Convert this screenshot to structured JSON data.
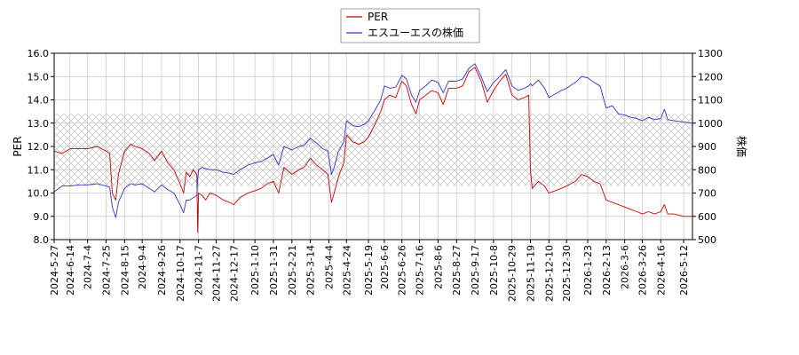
{
  "chart_data": {
    "type": "line",
    "legend": {
      "placement": "top-center",
      "entries": [
        "PER",
        "エスユーエスの株価"
      ]
    },
    "ylabel_left": "PER",
    "ylabel_right": "株価",
    "ylim_left": [
      8.0,
      16.0
    ],
    "ylim_right": [
      500,
      1300
    ],
    "yticks_left": [
      "8.0",
      "9.0",
      "10.0",
      "11.0",
      "12.0",
      "13.0",
      "14.0",
      "15.0",
      "16.0"
    ],
    "yticks_right": [
      "500",
      "600",
      "700",
      "800",
      "900",
      "1000",
      "1100",
      "1200",
      "1300"
    ],
    "xlim": [
      "2024-05-27",
      "2026-05-22"
    ],
    "xticks": [
      "2024-5-27",
      "2024-6-14",
      "2024-7-4",
      "2024-7-25",
      "2024-8-15",
      "2024-9-4",
      "2024-9-26",
      "2024-10-17",
      "2024-11-7",
      "2024-11-27",
      "2024-12-17",
      "2025-1-10",
      "2025-1-31",
      "2025-2-21",
      "2025-3-14",
      "2025-4-4",
      "2025-4-24",
      "2025-5-19",
      "2025-6-6",
      "2025-6-26",
      "2025-7-16",
      "2025-8-6",
      "2025-8-27",
      "2025-9-17",
      "2025-10-8",
      "2025-10-29",
      "2025-11-19",
      "2025-12-10",
      "2025-12-30",
      "2026-1-23",
      "2026-2-13",
      "2026-3-6",
      "2026-3-26",
      "2026-4-16",
      "2026-5-12"
    ],
    "grid": true,
    "shaded_band_right_axis": [
      730,
      1040
    ],
    "colors": {
      "per": "#cc0000",
      "price": "#3333cc",
      "grid": "#c8c8c8",
      "hatch": "#b8b8b8"
    },
    "series": [
      {
        "name": "PER",
        "axis": "left",
        "points": [
          [
            "2024-05-27",
            11.8
          ],
          [
            "2024-06-05",
            11.7
          ],
          [
            "2024-06-14",
            11.9
          ],
          [
            "2024-06-24",
            11.9
          ],
          [
            "2024-07-04",
            11.9
          ],
          [
            "2024-07-15",
            12.0
          ],
          [
            "2024-07-25",
            11.8
          ],
          [
            "2024-07-29",
            11.7
          ],
          [
            "2024-08-01",
            10.0
          ],
          [
            "2024-08-05",
            9.7
          ],
          [
            "2024-08-08",
            10.8
          ],
          [
            "2024-08-15",
            11.8
          ],
          [
            "2024-08-22",
            12.1
          ],
          [
            "2024-08-27",
            12.0
          ],
          [
            "2024-09-04",
            11.9
          ],
          [
            "2024-09-12",
            11.7
          ],
          [
            "2024-09-18",
            11.4
          ],
          [
            "2024-09-26",
            11.8
          ],
          [
            "2024-10-03",
            11.3
          ],
          [
            "2024-10-10",
            11.0
          ],
          [
            "2024-10-17",
            10.4
          ],
          [
            "2024-10-21",
            10.0
          ],
          [
            "2024-10-24",
            10.9
          ],
          [
            "2024-10-28",
            10.7
          ],
          [
            "2024-11-01",
            11.0
          ],
          [
            "2024-11-05",
            10.8
          ],
          [
            "2024-11-06",
            8.3
          ],
          [
            "2024-11-07",
            10.0
          ],
          [
            "2024-11-11",
            9.9
          ],
          [
            "2024-11-15",
            9.7
          ],
          [
            "2024-11-20",
            10.0
          ],
          [
            "2024-11-27",
            9.9
          ],
          [
            "2024-12-05",
            9.7
          ],
          [
            "2024-12-12",
            9.6
          ],
          [
            "2024-12-17",
            9.5
          ],
          [
            "2024-12-24",
            9.8
          ],
          [
            "2025-01-02",
            10.0
          ],
          [
            "2025-01-10",
            10.1
          ],
          [
            "2025-01-17",
            10.2
          ],
          [
            "2025-01-24",
            10.4
          ],
          [
            "2025-01-31",
            10.5
          ],
          [
            "2025-02-06",
            10.0
          ],
          [
            "2025-02-12",
            11.1
          ],
          [
            "2025-02-21",
            10.8
          ],
          [
            "2025-03-01",
            11.0
          ],
          [
            "2025-03-07",
            11.1
          ],
          [
            "2025-03-14",
            11.5
          ],
          [
            "2025-03-21",
            11.2
          ],
          [
            "2025-03-28",
            11.0
          ],
          [
            "2025-04-03",
            10.8
          ],
          [
            "2025-04-07",
            9.6
          ],
          [
            "2025-04-10",
            10.0
          ],
          [
            "2025-04-15",
            10.7
          ],
          [
            "2025-04-21",
            11.3
          ],
          [
            "2025-04-24",
            12.5
          ],
          [
            "2025-05-01",
            12.2
          ],
          [
            "2025-05-08",
            12.1
          ],
          [
            "2025-05-14",
            12.2
          ],
          [
            "2025-05-19",
            12.4
          ],
          [
            "2025-05-27",
            13.0
          ],
          [
            "2025-06-02",
            13.5
          ],
          [
            "2025-06-06",
            14.0
          ],
          [
            "2025-06-12",
            14.2
          ],
          [
            "2025-06-19",
            14.1
          ],
          [
            "2025-06-26",
            14.8
          ],
          [
            "2025-07-01",
            14.6
          ],
          [
            "2025-07-07",
            13.8
          ],
          [
            "2025-07-12",
            13.4
          ],
          [
            "2025-07-16",
            14.0
          ],
          [
            "2025-07-23",
            14.2
          ],
          [
            "2025-07-30",
            14.4
          ],
          [
            "2025-08-06",
            14.3
          ],
          [
            "2025-08-12",
            13.8
          ],
          [
            "2025-08-18",
            14.5
          ],
          [
            "2025-08-27",
            14.5
          ],
          [
            "2025-09-03",
            14.6
          ],
          [
            "2025-09-10",
            15.2
          ],
          [
            "2025-09-17",
            15.4
          ],
          [
            "2025-09-24",
            14.8
          ],
          [
            "2025-10-01",
            13.9
          ],
          [
            "2025-10-08",
            14.4
          ],
          [
            "2025-10-15",
            14.8
          ],
          [
            "2025-10-22",
            15.1
          ],
          [
            "2025-10-29",
            14.2
          ],
          [
            "2025-11-05",
            14.0
          ],
          [
            "2025-11-12",
            14.1
          ],
          [
            "2025-11-17",
            14.2
          ],
          [
            "2025-11-19",
            11.0
          ],
          [
            "2025-11-21",
            10.2
          ],
          [
            "2025-11-28",
            10.5
          ],
          [
            "2025-12-05",
            10.3
          ],
          [
            "2025-12-10",
            10.0
          ],
          [
            "2025-12-17",
            10.1
          ],
          [
            "2025-12-24",
            10.2
          ],
          [
            "2025-12-30",
            10.3
          ],
          [
            "2026-01-09",
            10.5
          ],
          [
            "2026-01-16",
            10.8
          ],
          [
            "2026-01-23",
            10.7
          ],
          [
            "2026-01-30",
            10.5
          ],
          [
            "2026-02-06",
            10.4
          ],
          [
            "2026-02-13",
            9.7
          ],
          [
            "2026-02-20",
            9.6
          ],
          [
            "2026-02-27",
            9.5
          ],
          [
            "2026-03-06",
            9.4
          ],
          [
            "2026-03-13",
            9.3
          ],
          [
            "2026-03-20",
            9.2
          ],
          [
            "2026-03-26",
            9.1
          ],
          [
            "2026-04-02",
            9.2
          ],
          [
            "2026-04-09",
            9.1
          ],
          [
            "2026-04-16",
            9.2
          ],
          [
            "2026-04-20",
            9.5
          ],
          [
            "2026-04-24",
            9.1
          ],
          [
            "2026-05-01",
            9.1
          ],
          [
            "2026-05-12",
            9.0
          ],
          [
            "2026-05-22",
            9.0
          ]
        ]
      },
      {
        "name": "エスユーエスの株価",
        "axis": "right",
        "points": [
          [
            "2024-05-27",
            705
          ],
          [
            "2024-06-05",
            730
          ],
          [
            "2024-06-14",
            730
          ],
          [
            "2024-06-24",
            735
          ],
          [
            "2024-07-04",
            735
          ],
          [
            "2024-07-15",
            740
          ],
          [
            "2024-07-25",
            730
          ],
          [
            "2024-07-29",
            725
          ],
          [
            "2024-08-01",
            640
          ],
          [
            "2024-08-05",
            595
          ],
          [
            "2024-08-08",
            660
          ],
          [
            "2024-08-15",
            720
          ],
          [
            "2024-08-22",
            740
          ],
          [
            "2024-08-27",
            735
          ],
          [
            "2024-09-04",
            740
          ],
          [
            "2024-09-12",
            720
          ],
          [
            "2024-09-18",
            705
          ],
          [
            "2024-09-26",
            735
          ],
          [
            "2024-10-03",
            715
          ],
          [
            "2024-10-10",
            700
          ],
          [
            "2024-10-17",
            650
          ],
          [
            "2024-10-21",
            615
          ],
          [
            "2024-10-24",
            670
          ],
          [
            "2024-10-28",
            670
          ],
          [
            "2024-11-01",
            680
          ],
          [
            "2024-11-05",
            690
          ],
          [
            "2024-11-06",
            760
          ],
          [
            "2024-11-07",
            800
          ],
          [
            "2024-11-11",
            810
          ],
          [
            "2024-11-15",
            805
          ],
          [
            "2024-11-20",
            800
          ],
          [
            "2024-11-27",
            800
          ],
          [
            "2024-12-05",
            790
          ],
          [
            "2024-12-12",
            785
          ],
          [
            "2024-12-17",
            780
          ],
          [
            "2024-12-24",
            800
          ],
          [
            "2025-01-02",
            820
          ],
          [
            "2025-01-10",
            830
          ],
          [
            "2025-01-17",
            835
          ],
          [
            "2025-01-24",
            850
          ],
          [
            "2025-01-31",
            865
          ],
          [
            "2025-02-06",
            820
          ],
          [
            "2025-02-12",
            900
          ],
          [
            "2025-02-21",
            885
          ],
          [
            "2025-03-01",
            900
          ],
          [
            "2025-03-07",
            905
          ],
          [
            "2025-03-14",
            935
          ],
          [
            "2025-03-21",
            915
          ],
          [
            "2025-03-28",
            890
          ],
          [
            "2025-04-03",
            880
          ],
          [
            "2025-04-07",
            780
          ],
          [
            "2025-04-10",
            810
          ],
          [
            "2025-04-15",
            880
          ],
          [
            "2025-04-21",
            920
          ],
          [
            "2025-04-24",
            1010
          ],
          [
            "2025-05-01",
            990
          ],
          [
            "2025-05-08",
            985
          ],
          [
            "2025-05-14",
            995
          ],
          [
            "2025-05-19",
            1010
          ],
          [
            "2025-05-27",
            1060
          ],
          [
            "2025-06-02",
            1100
          ],
          [
            "2025-06-06",
            1160
          ],
          [
            "2025-06-12",
            1150
          ],
          [
            "2025-06-19",
            1155
          ],
          [
            "2025-06-26",
            1205
          ],
          [
            "2025-07-01",
            1190
          ],
          [
            "2025-07-07",
            1120
          ],
          [
            "2025-07-12",
            1090
          ],
          [
            "2025-07-16",
            1140
          ],
          [
            "2025-07-23",
            1160
          ],
          [
            "2025-07-30",
            1185
          ],
          [
            "2025-08-06",
            1175
          ],
          [
            "2025-08-12",
            1130
          ],
          [
            "2025-08-18",
            1180
          ],
          [
            "2025-08-27",
            1180
          ],
          [
            "2025-09-03",
            1190
          ],
          [
            "2025-09-10",
            1235
          ],
          [
            "2025-09-17",
            1255
          ],
          [
            "2025-09-24",
            1200
          ],
          [
            "2025-10-01",
            1135
          ],
          [
            "2025-10-08",
            1175
          ],
          [
            "2025-10-15",
            1200
          ],
          [
            "2025-10-22",
            1230
          ],
          [
            "2025-10-29",
            1160
          ],
          [
            "2025-11-05",
            1140
          ],
          [
            "2025-11-12",
            1150
          ],
          [
            "2025-11-17",
            1160
          ],
          [
            "2025-11-19",
            1170
          ],
          [
            "2025-11-21",
            1160
          ],
          [
            "2025-11-28",
            1185
          ],
          [
            "2025-12-05",
            1150
          ],
          [
            "2025-12-10",
            1110
          ],
          [
            "2025-12-17",
            1125
          ],
          [
            "2025-12-24",
            1140
          ],
          [
            "2025-12-30",
            1150
          ],
          [
            "2026-01-09",
            1175
          ],
          [
            "2026-01-16",
            1200
          ],
          [
            "2026-01-23",
            1195
          ],
          [
            "2026-01-30",
            1175
          ],
          [
            "2026-02-06",
            1160
          ],
          [
            "2026-02-13",
            1065
          ],
          [
            "2026-02-20",
            1075
          ],
          [
            "2026-02-27",
            1040
          ],
          [
            "2026-03-06",
            1035
          ],
          [
            "2026-03-13",
            1025
          ],
          [
            "2026-03-20",
            1020
          ],
          [
            "2026-03-26",
            1010
          ],
          [
            "2026-04-02",
            1025
          ],
          [
            "2026-04-09",
            1015
          ],
          [
            "2026-04-16",
            1020
          ],
          [
            "2026-04-20",
            1060
          ],
          [
            "2026-04-24",
            1015
          ],
          [
            "2026-05-01",
            1010
          ],
          [
            "2026-05-12",
            1005
          ],
          [
            "2026-05-22",
            1000
          ]
        ]
      }
    ]
  }
}
